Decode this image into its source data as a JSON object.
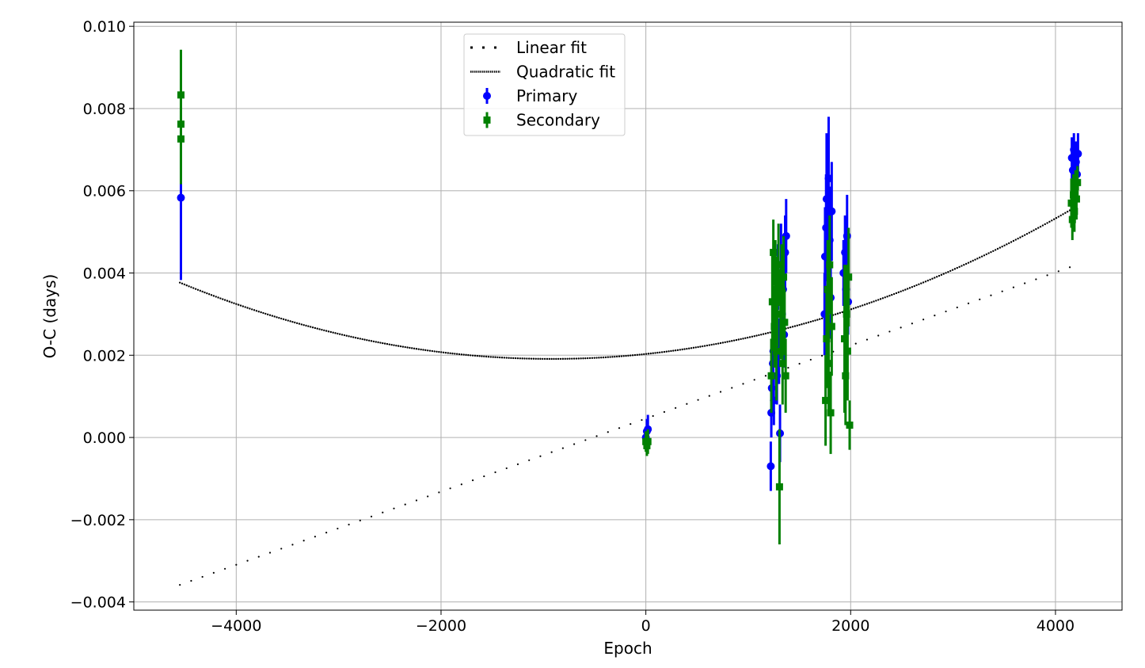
{
  "chart_data": {
    "type": "scatter",
    "title": "",
    "xlabel": "Epoch",
    "ylabel": "O-C (days)",
    "xlim": [
      -5000,
      4650
    ],
    "ylim": [
      -0.0042,
      0.0101
    ],
    "grid": true,
    "legend_placement": "upper-center",
    "x_ticks": [
      -4000,
      -2000,
      0,
      2000,
      4000
    ],
    "x_tick_labels": [
      "−4000",
      "−2000",
      "0",
      "2000",
      "4000"
    ],
    "y_ticks": [
      -0.004,
      -0.002,
      0.0,
      0.002,
      0.004,
      0.006,
      0.008,
      0.01
    ],
    "y_tick_labels": [
      "−0.004",
      "−0.002",
      "0.000",
      "0.002",
      "0.004",
      "0.006",
      "0.008",
      "0.010"
    ],
    "legend": [
      {
        "label": "Linear fit",
        "kind": "linear",
        "color": "#000000"
      },
      {
        "label": "Quadratic fit",
        "kind": "quadratic",
        "color": "#000000"
      },
      {
        "label": "Primary",
        "kind": "primary",
        "color": "#0000ff"
      },
      {
        "label": "Secondary",
        "kind": "secondary",
        "color": "#008000"
      }
    ],
    "linear_fit": {
      "name": "Linear fit",
      "slope": 8.89e-07,
      "intercept": 0.00046,
      "x_range": [
        -4550,
        4200
      ],
      "style": "sparse dots"
    },
    "quadratic_fit": {
      "name": "Quadratic fit",
      "a": 1.41e-10,
      "b": 2.6e-07,
      "c": 0.00203,
      "x_range": [
        -4550,
        4140
      ],
      "style": "dense dots"
    },
    "series": [
      {
        "name": "Primary",
        "color": "#0000ff",
        "marker": "circle",
        "points": [
          {
            "x": -4540,
            "y": 0.00583,
            "err": 0.002
          },
          {
            "x": 0,
            "y": 0.0,
            "err": 0.00025
          },
          {
            "x": 10,
            "y": 0.00015,
            "err": 0.0003
          },
          {
            "x": 20,
            "y": 0.0002,
            "err": 0.00035
          },
          {
            "x": 1220,
            "y": -0.0007,
            "err": 0.0006
          },
          {
            "x": 1225,
            "y": 0.0006,
            "err": 0.0006
          },
          {
            "x": 1230,
            "y": 0.0012,
            "err": 0.0006
          },
          {
            "x": 1240,
            "y": 0.0018,
            "err": 0.0006
          },
          {
            "x": 1245,
            "y": 0.0021,
            "err": 0.0007
          },
          {
            "x": 1250,
            "y": 0.0009,
            "err": 0.0006
          },
          {
            "x": 1260,
            "y": 0.0027,
            "err": 0.0007
          },
          {
            "x": 1270,
            "y": 0.0033,
            "err": 0.0008
          },
          {
            "x": 1280,
            "y": 0.0015,
            "err": 0.0007
          },
          {
            "x": 1290,
            "y": 0.0039,
            "err": 0.0008
          },
          {
            "x": 1300,
            "y": 0.0021,
            "err": 0.0008
          },
          {
            "x": 1310,
            "y": 0.0001,
            "err": 0.0007
          },
          {
            "x": 1320,
            "y": 0.0042,
            "err": 0.001
          },
          {
            "x": 1330,
            "y": 0.003,
            "err": 0.0009
          },
          {
            "x": 1340,
            "y": 0.0036,
            "err": 0.0008
          },
          {
            "x": 1350,
            "y": 0.0025,
            "err": 0.0008
          },
          {
            "x": 1360,
            "y": 0.0045,
            "err": 0.0009
          },
          {
            "x": 1370,
            "y": 0.0049,
            "err": 0.0009
          },
          {
            "x": 1745,
            "y": 0.003,
            "err": 0.001
          },
          {
            "x": 1750,
            "y": 0.0044,
            "err": 0.0012
          },
          {
            "x": 1760,
            "y": 0.0051,
            "err": 0.0013
          },
          {
            "x": 1765,
            "y": 0.0058,
            "err": 0.0016
          },
          {
            "x": 1775,
            "y": 0.0039,
            "err": 0.0012
          },
          {
            "x": 1785,
            "y": 0.0063,
            "err": 0.0015
          },
          {
            "x": 1795,
            "y": 0.0048,
            "err": 0.0013
          },
          {
            "x": 1805,
            "y": 0.0034,
            "err": 0.001
          },
          {
            "x": 1815,
            "y": 0.0055,
            "err": 0.0012
          },
          {
            "x": 1930,
            "y": 0.004,
            "err": 0.0008
          },
          {
            "x": 1945,
            "y": 0.0045,
            "err": 0.0009
          },
          {
            "x": 1955,
            "y": 0.0036,
            "err": 0.0008
          },
          {
            "x": 1965,
            "y": 0.0049,
            "err": 0.001
          },
          {
            "x": 1975,
            "y": 0.0033,
            "err": 0.0008
          },
          {
            "x": 4160,
            "y": 0.0068,
            "err": 0.0005
          },
          {
            "x": 4170,
            "y": 0.0065,
            "err": 0.0005
          },
          {
            "x": 4180,
            "y": 0.007,
            "err": 0.0004
          },
          {
            "x": 4190,
            "y": 0.0062,
            "err": 0.0005
          },
          {
            "x": 4200,
            "y": 0.0067,
            "err": 0.0005
          },
          {
            "x": 4210,
            "y": 0.0064,
            "err": 0.0004
          },
          {
            "x": 4220,
            "y": 0.0069,
            "err": 0.0005
          }
        ]
      },
      {
        "name": "Secondary",
        "color": "#008000",
        "marker": "square",
        "points": [
          {
            "x": -4540,
            "y": 0.00833,
            "err": 0.0011
          },
          {
            "x": -4540,
            "y": 0.00762,
            "err": 0.0011
          },
          {
            "x": -4540,
            "y": 0.00726,
            "err": 0.0011
          },
          {
            "x": 0,
            "y": -0.0001,
            "err": 0.00025
          },
          {
            "x": 10,
            "y": -0.0002,
            "err": 0.00025
          },
          {
            "x": 20,
            "y": -0.0001,
            "err": 0.0003
          },
          {
            "x": 1225,
            "y": 0.0015,
            "err": 0.0009
          },
          {
            "x": 1235,
            "y": 0.0033,
            "err": 0.0012
          },
          {
            "x": 1245,
            "y": 0.0045,
            "err": 0.0008
          },
          {
            "x": 1255,
            "y": 0.0027,
            "err": 0.001
          },
          {
            "x": 1265,
            "y": 0.0038,
            "err": 0.001
          },
          {
            "x": 1275,
            "y": 0.0021,
            "err": 0.0012
          },
          {
            "x": 1285,
            "y": 0.0033,
            "err": 0.0011
          },
          {
            "x": 1295,
            "y": 0.0042,
            "err": 0.001
          },
          {
            "x": 1305,
            "y": -0.0012,
            "err": 0.0014
          },
          {
            "x": 1315,
            "y": 0.003,
            "err": 0.0011
          },
          {
            "x": 1325,
            "y": 0.0036,
            "err": 0.0011
          },
          {
            "x": 1335,
            "y": 0.0018,
            "err": 0.001
          },
          {
            "x": 1345,
            "y": 0.0039,
            "err": 0.001
          },
          {
            "x": 1355,
            "y": 0.0028,
            "err": 0.0008
          },
          {
            "x": 1365,
            "y": 0.0015,
            "err": 0.0009
          },
          {
            "x": 1755,
            "y": 0.0009,
            "err": 0.0011
          },
          {
            "x": 1765,
            "y": 0.0024,
            "err": 0.0012
          },
          {
            "x": 1775,
            "y": 0.0036,
            "err": 0.0012
          },
          {
            "x": 1785,
            "y": 0.0018,
            "err": 0.0012
          },
          {
            "x": 1795,
            "y": 0.0042,
            "err": 0.0012
          },
          {
            "x": 1805,
            "y": 0.0006,
            "err": 0.001
          },
          {
            "x": 1815,
            "y": 0.0027,
            "err": 0.0012
          },
          {
            "x": 1940,
            "y": 0.0024,
            "err": 0.0018
          },
          {
            "x": 1950,
            "y": 0.0015,
            "err": 0.0012
          },
          {
            "x": 1960,
            "y": 0.003,
            "err": 0.0012
          },
          {
            "x": 1970,
            "y": 0.0021,
            "err": 0.0012
          },
          {
            "x": 1980,
            "y": 0.0039,
            "err": 0.0012
          },
          {
            "x": 1990,
            "y": 0.0003,
            "err": 0.0006
          },
          {
            "x": 4155,
            "y": 0.0057,
            "err": 0.0006
          },
          {
            "x": 4165,
            "y": 0.0053,
            "err": 0.0005
          },
          {
            "x": 4175,
            "y": 0.0059,
            "err": 0.0005
          },
          {
            "x": 4185,
            "y": 0.0055,
            "err": 0.0005
          },
          {
            "x": 4195,
            "y": 0.0061,
            "err": 0.0004
          },
          {
            "x": 4205,
            "y": 0.0058,
            "err": 0.0005
          },
          {
            "x": 4215,
            "y": 0.0062,
            "err": 0.0004
          }
        ]
      }
    ]
  }
}
